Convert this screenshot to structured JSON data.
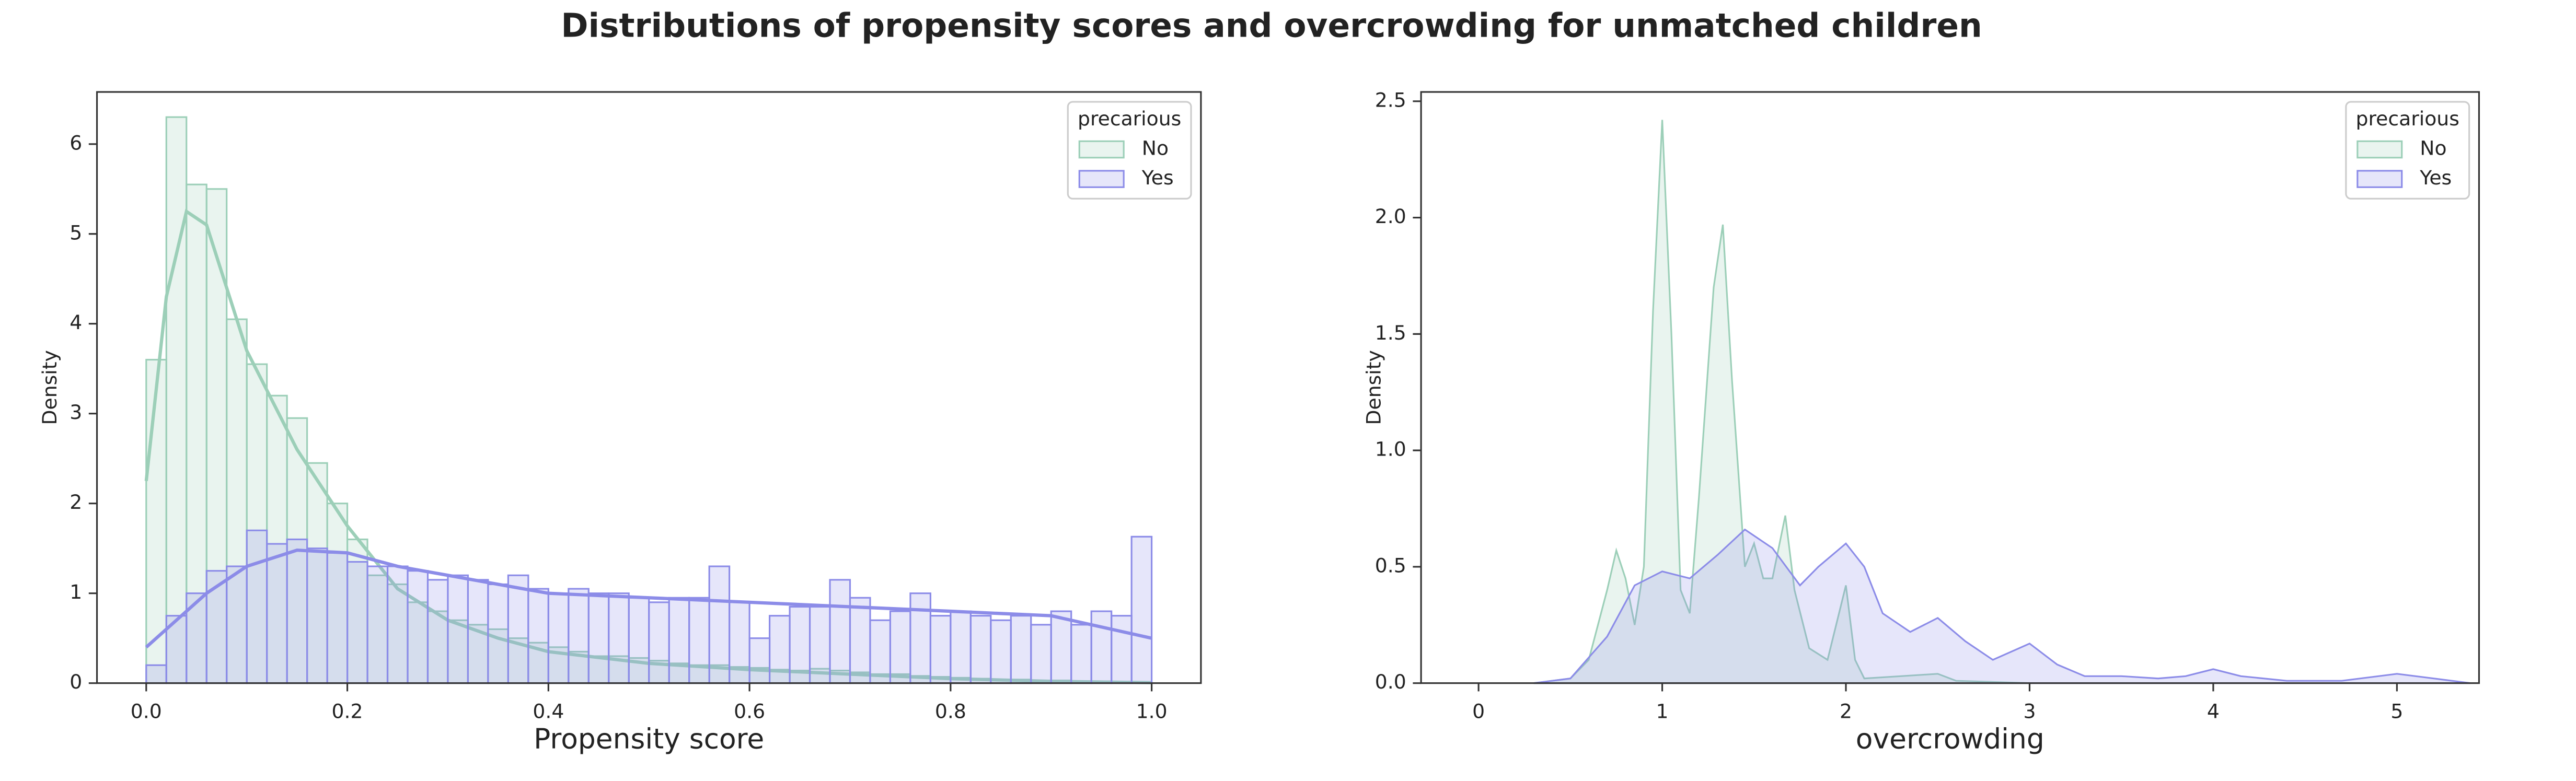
{
  "title": "Distributions of propensity scores and overcrowding for unmatched children",
  "chart_data": [
    {
      "type": "histogram",
      "xlabel": "Propensity score",
      "ylabel": "Density",
      "xlim": [
        -0.049,
        1.049
      ],
      "ylim": [
        0,
        6.58
      ],
      "xticks": [
        {
          "value": 0,
          "label": "0.0"
        },
        0.2,
        0.4,
        0.6,
        0.8,
        {
          "value": 1,
          "label": "1.0"
        }
      ],
      "yticks": [
        0,
        1,
        2,
        3,
        4,
        5,
        6
      ],
      "legend_title": "precarious",
      "legend": "upper right",
      "bins": [
        0,
        0.02,
        0.04,
        0.06,
        0.08,
        0.1,
        0.12,
        0.14,
        0.16,
        0.18,
        0.2,
        0.22,
        0.24,
        0.26,
        0.28,
        0.3,
        0.32,
        0.34,
        0.36,
        0.38,
        0.4,
        0.42,
        0.44,
        0.46,
        0.48,
        0.5,
        0.52,
        0.54,
        0.56,
        0.58,
        0.6,
        0.62,
        0.64,
        0.66,
        0.68,
        0.7,
        0.72,
        0.74,
        0.76,
        0.78,
        0.8,
        0.82,
        0.84,
        0.86,
        0.88,
        0.9,
        0.92,
        0.94,
        0.96,
        0.98,
        1.0
      ],
      "kde_x": [
        0,
        0.02,
        0.04,
        0.06,
        0.08,
        0.1,
        0.15,
        0.2,
        0.25,
        0.3,
        0.35,
        0.4,
        0.5,
        0.6,
        0.7,
        0.8,
        0.9,
        1.0
      ],
      "series": [
        {
          "name": "No",
          "color": "#9ccfb8",
          "values": [
            3.6,
            6.3,
            5.55,
            5.5,
            4.05,
            3.55,
            3.2,
            2.95,
            2.45,
            2.0,
            1.6,
            1.2,
            1.1,
            0.9,
            0.8,
            0.7,
            0.65,
            0.6,
            0.5,
            0.45,
            0.4,
            0.35,
            0.3,
            0.3,
            0.28,
            0.25,
            0.22,
            0.2,
            0.2,
            0.18,
            0.17,
            0.15,
            0.14,
            0.16,
            0.14,
            0.12,
            0.1,
            0.1,
            0.08,
            0.07,
            0.06,
            0.05,
            0.04,
            0.04,
            0.03,
            0.03,
            0.02,
            0.02,
            0.01,
            0.01
          ],
          "kde_values": [
            2.25,
            4.3,
            5.25,
            5.1,
            4.4,
            3.7,
            2.6,
            1.75,
            1.05,
            0.7,
            0.5,
            0.35,
            0.22,
            0.15,
            0.1,
            0.05,
            0.02,
            0.005
          ]
        },
        {
          "name": "Yes",
          "color": "#8c8ce8",
          "values": [
            0.2,
            0.75,
            1.0,
            1.25,
            1.3,
            1.7,
            1.55,
            1.6,
            1.5,
            1.45,
            1.35,
            1.3,
            1.3,
            1.25,
            1.15,
            1.2,
            1.15,
            1.1,
            1.2,
            1.05,
            1.0,
            1.05,
            1.0,
            1.0,
            0.95,
            0.9,
            0.95,
            0.95,
            1.3,
            0.9,
            0.5,
            0.75,
            0.85,
            0.85,
            1.15,
            0.95,
            0.7,
            0.8,
            1.0,
            0.75,
            0.8,
            0.75,
            0.7,
            0.75,
            0.65,
            0.8,
            0.65,
            0.8,
            0.75,
            1.63
          ],
          "kde_values": [
            0.4,
            0.6,
            0.8,
            1.0,
            1.15,
            1.3,
            1.48,
            1.45,
            1.3,
            1.2,
            1.1,
            1.0,
            0.95,
            0.9,
            0.85,
            0.8,
            0.75,
            0.5
          ]
        }
      ]
    },
    {
      "type": "kde",
      "xlabel": "overcrowding",
      "ylabel": "Density",
      "xlim": [
        -0.313,
        5.447
      ],
      "ylim": [
        0,
        2.54
      ],
      "xticks": [
        0,
        1,
        2,
        3,
        4,
        5
      ],
      "yticks": [
        {
          "value": 0,
          "label": "0.0"
        },
        0.5,
        {
          "value": 1,
          "label": "1.0"
        },
        1.5,
        {
          "value": 2,
          "label": "2.0"
        },
        2.5
      ],
      "legend_title": "precarious",
      "legend": "upper right",
      "series": [
        {
          "name": "No",
          "color": "#9ccfb8",
          "x": [
            0.3,
            0.5,
            0.6,
            0.7,
            0.75,
            0.8,
            0.85,
            0.9,
            0.95,
            1.0,
            1.05,
            1.1,
            1.15,
            1.2,
            1.28,
            1.33,
            1.38,
            1.45,
            1.5,
            1.55,
            1.6,
            1.67,
            1.72,
            1.8,
            1.9,
            2.0,
            2.05,
            2.1,
            2.3,
            2.5,
            2.6,
            3.0
          ],
          "values": [
            0,
            0.02,
            0.1,
            0.4,
            0.57,
            0.45,
            0.25,
            0.5,
            1.6,
            2.42,
            1.5,
            0.4,
            0.3,
            0.8,
            1.7,
            1.97,
            1.3,
            0.5,
            0.6,
            0.45,
            0.45,
            0.72,
            0.4,
            0.15,
            0.1,
            0.42,
            0.1,
            0.02,
            0.03,
            0.04,
            0.01,
            0
          ]
        },
        {
          "name": "Yes",
          "color": "#8c8ce8",
          "x": [
            0.3,
            0.5,
            0.7,
            0.85,
            1.0,
            1.15,
            1.3,
            1.45,
            1.6,
            1.75,
            1.85,
            2.0,
            2.1,
            2.2,
            2.35,
            2.5,
            2.65,
            2.8,
            3.0,
            3.15,
            3.3,
            3.5,
            3.7,
            3.85,
            4.0,
            4.15,
            4.4,
            4.7,
            5.0,
            5.2,
            5.4
          ],
          "values": [
            0,
            0.02,
            0.2,
            0.42,
            0.48,
            0.45,
            0.55,
            0.66,
            0.58,
            0.42,
            0.5,
            0.6,
            0.5,
            0.3,
            0.22,
            0.28,
            0.18,
            0.1,
            0.17,
            0.08,
            0.03,
            0.03,
            0.02,
            0.03,
            0.06,
            0.03,
            0.01,
            0.01,
            0.04,
            0.02,
            0
          ]
        }
      ]
    }
  ]
}
